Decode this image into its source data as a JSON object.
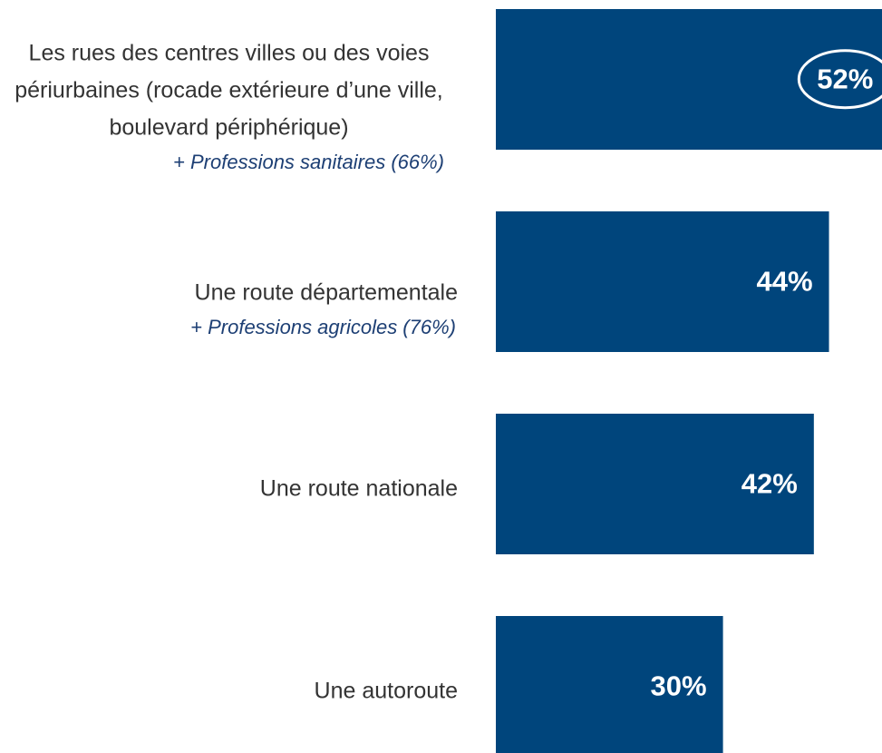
{
  "chart_data": {
    "type": "bar",
    "orientation": "horizontal",
    "categories": [
      "Les rues des centres villes ou des voies périurbaines (rocade extérieure d’une ville, boulevard périphérique)",
      "Une route départementale",
      "Une route nationale",
      "Une autoroute"
    ],
    "notes": [
      "+ Professions sanitaires (66%)",
      "+ Professions agricoles (76%)",
      null,
      null
    ],
    "values": [
      52,
      44,
      42,
      30
    ],
    "value_labels": [
      "52%",
      "44%",
      "42%",
      "30%"
    ],
    "color": "#00457c",
    "xlim": [
      0,
      51
    ]
  }
}
